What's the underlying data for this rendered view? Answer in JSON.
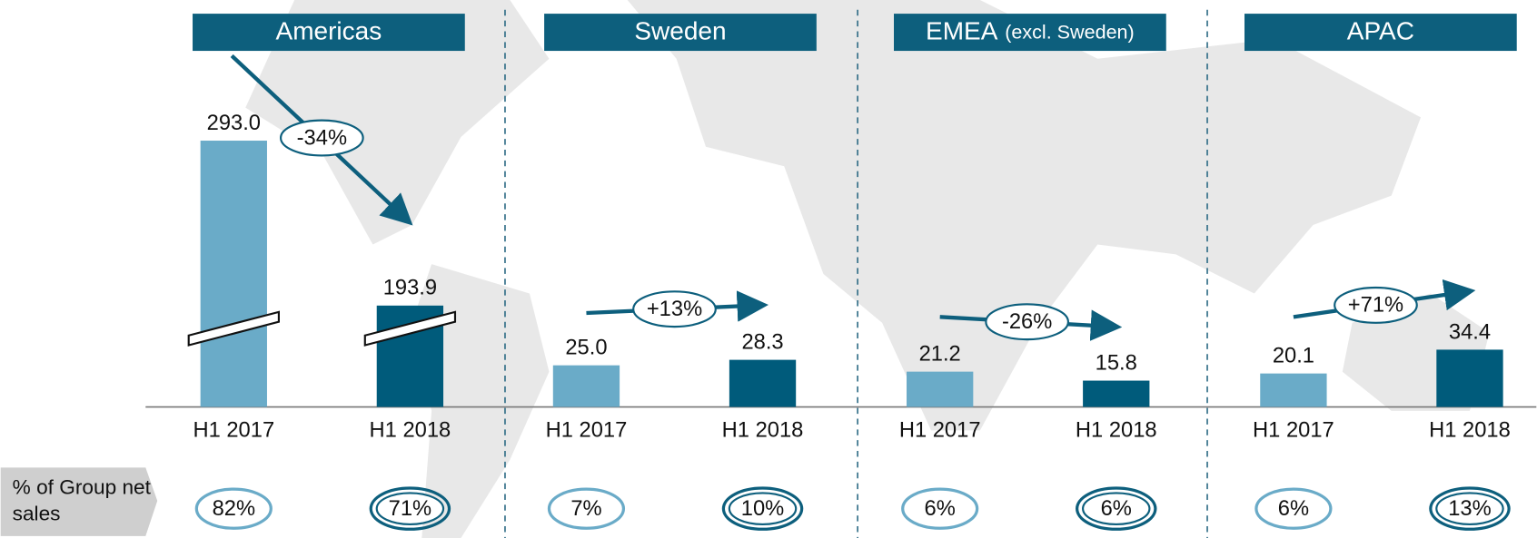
{
  "row_label": "% of Group net sales",
  "chart_data": [
    {
      "type": "bar",
      "title": "Americas",
      "categories": [
        "H1 2017",
        "H1 2018"
      ],
      "values": [
        293.0,
        193.9
      ],
      "value_labels": [
        "293.0",
        "193.9"
      ],
      "colors": [
        "#6aabc8",
        "#005b7b"
      ],
      "ylim": [
        0,
        354
      ],
      "ybreak": [
        50,
        183
      ],
      "change": "-34%",
      "shares": [
        "82%",
        "71%"
      ]
    },
    {
      "type": "bar",
      "title": "Sweden",
      "categories": [
        "H1 2017",
        "H1 2018"
      ],
      "values": [
        25.0,
        28.3
      ],
      "value_labels": [
        "25.0",
        "28.3"
      ],
      "colors": [
        "#6aabc8",
        "#005b7b"
      ],
      "ylim": [
        0,
        221
      ],
      "change": "+13%",
      "shares": [
        "7%",
        "10%"
      ]
    },
    {
      "type": "bar",
      "title": "EMEA",
      "subtitle": "(excl. Sweden)",
      "categories": [
        "H1 2017",
        "H1 2018"
      ],
      "values": [
        21.2,
        15.8
      ],
      "value_labels": [
        "21.2",
        "15.8"
      ],
      "colors": [
        "#6aabc8",
        "#005b7b"
      ],
      "ylim": [
        0,
        221
      ],
      "change": "-26%",
      "shares": [
        "6%",
        "6%"
      ]
    },
    {
      "type": "bar",
      "title": "APAC",
      "categories": [
        "H1 2017",
        "H1 2018"
      ],
      "values": [
        20.1,
        34.4
      ],
      "value_labels": [
        "20.1",
        "34.4"
      ],
      "colors": [
        "#6aabc8",
        "#005b7b"
      ],
      "ylim": [
        0,
        221
      ],
      "change": "+71%",
      "shares": [
        "6%",
        "13%"
      ]
    }
  ]
}
